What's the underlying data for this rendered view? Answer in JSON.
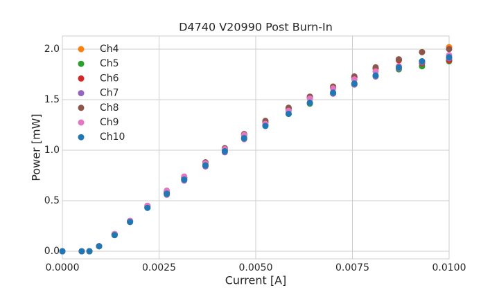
{
  "chart_data": {
    "type": "scatter",
    "title": "D4740 V20990 Post Burn-In",
    "x_label": "Current [A]",
    "y_label": "Power [mW]",
    "x": [
      0,
      0.0005,
      0.0007,
      0.00095,
      0.00135,
      0.00175,
      0.0022,
      0.0027,
      0.00315,
      0.0037,
      0.0042,
      0.0047,
      0.00525,
      0.00585,
      0.0064,
      0.007,
      0.00755,
      0.0081,
      0.0087,
      0.0093,
      0.01
    ],
    "series": [
      {
        "name": "Ch4",
        "color": "#ff7f0e",
        "values": [
          0,
          0,
          0,
          0.05,
          0.17,
          0.3,
          0.45,
          0.59,
          0.73,
          0.87,
          1.01,
          1.15,
          1.28,
          1.41,
          1.52,
          1.62,
          1.72,
          1.81,
          1.89,
          1.97,
          2.02
        ]
      },
      {
        "name": "Ch5",
        "color": "#2ca02c",
        "values": [
          0,
          0,
          0,
          0.05,
          0.16,
          0.29,
          0.43,
          0.57,
          0.71,
          0.85,
          0.99,
          1.12,
          1.25,
          1.36,
          1.46,
          1.56,
          1.65,
          1.73,
          1.8,
          1.83,
          1.88
        ]
      },
      {
        "name": "Ch6",
        "color": "#d62728",
        "values": [
          0,
          0,
          0,
          0.05,
          0.17,
          0.3,
          0.44,
          0.58,
          0.72,
          0.87,
          1.01,
          1.15,
          1.28,
          1.41,
          1.52,
          1.62,
          1.72,
          1.81,
          1.89,
          1.86,
          1.89
        ]
      },
      {
        "name": "Ch7",
        "color": "#9467bd",
        "values": [
          0,
          0,
          0,
          0.05,
          0.16,
          0.29,
          0.43,
          0.56,
          0.7,
          0.84,
          0.98,
          1.11,
          1.24,
          1.36,
          1.47,
          1.56,
          1.65,
          1.73,
          1.81,
          1.87,
          1.91
        ]
      },
      {
        "name": "Ch8",
        "color": "#8c564b",
        "values": [
          0,
          0,
          0,
          0.05,
          0.17,
          0.3,
          0.45,
          0.59,
          0.73,
          0.88,
          1.02,
          1.16,
          1.29,
          1.42,
          1.53,
          1.63,
          1.73,
          1.82,
          1.9,
          1.97,
          2.0
        ]
      },
      {
        "name": "Ch9",
        "color": "#e377c2",
        "values": [
          0,
          0,
          0,
          0.05,
          0.17,
          0.3,
          0.45,
          0.6,
          0.74,
          0.87,
          1.01,
          1.15,
          1.26,
          1.39,
          1.51,
          1.61,
          1.7,
          1.78,
          1.83,
          1.88,
          1.94
        ]
      },
      {
        "name": "Ch10",
        "color": "#1f77b4",
        "values": [
          0,
          0,
          0,
          0.05,
          0.16,
          0.29,
          0.43,
          0.57,
          0.71,
          0.85,
          0.99,
          1.12,
          1.24,
          1.36,
          1.47,
          1.57,
          1.66,
          1.74,
          1.82,
          1.88,
          1.92
        ]
      }
    ],
    "xlim": [
      0,
      0.01
    ],
    "ylim": [
      -0.075,
      2.13
    ],
    "xticks": [
      {
        "value": 0,
        "label": "0.0000"
      },
      {
        "value": 0.0025,
        "label": "0.0025"
      },
      {
        "value": 0.005,
        "label": "0.0050"
      },
      {
        "value": 0.0075,
        "label": "0.0075"
      },
      {
        "value": 0.01,
        "label": "0.0100"
      }
    ],
    "yticks": [
      {
        "value": 0,
        "label": "0.0"
      },
      {
        "value": 0.5,
        "label": "0.5"
      },
      {
        "value": 1,
        "label": "1.0"
      },
      {
        "value": 1.5,
        "label": "1.5"
      },
      {
        "value": 2,
        "label": "2.0"
      }
    ],
    "grid": true,
    "legend": "upper-left"
  }
}
